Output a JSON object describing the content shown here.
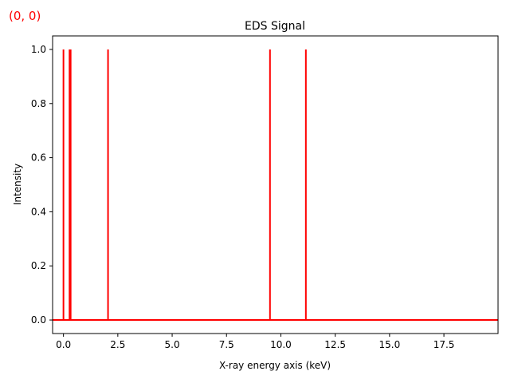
{
  "overlay": {
    "coordinate_readout": "(0, 0)",
    "color": "#ff0000"
  },
  "chart_data": {
    "type": "line",
    "title": "EDS Signal",
    "xlabel": "X-ray energy axis (keV)",
    "ylabel": "Intensity",
    "xlim": [
      -0.5,
      19.99
    ],
    "ylim": [
      -0.05,
      1.05
    ],
    "xticks": [
      0.0,
      2.5,
      5.0,
      7.5,
      10.0,
      12.5,
      15.0,
      17.5
    ],
    "xtick_labels": [
      "0.0",
      "2.5",
      "5.0",
      "7.5",
      "10.0",
      "12.5",
      "15.0",
      "17.5"
    ],
    "yticks": [
      0.0,
      0.2,
      0.4,
      0.6,
      0.8,
      1.0
    ],
    "ytick_labels": [
      "0.0",
      "0.2",
      "0.4",
      "0.6",
      "0.8",
      "1.0"
    ],
    "grid": false,
    "series": [
      {
        "color": "#ff0000",
        "baseline": 0.0,
        "x_range": [
          -0.5,
          19.99
        ],
        "peaks": [
          {
            "x": 0.0,
            "y": 1.0
          },
          {
            "x": 0.28,
            "y": 1.0
          },
          {
            "x": 0.33,
            "y": 1.0
          },
          {
            "x": 2.05,
            "y": 1.0
          },
          {
            "x": 9.5,
            "y": 1.0
          },
          {
            "x": 11.15,
            "y": 1.0
          }
        ]
      }
    ]
  }
}
